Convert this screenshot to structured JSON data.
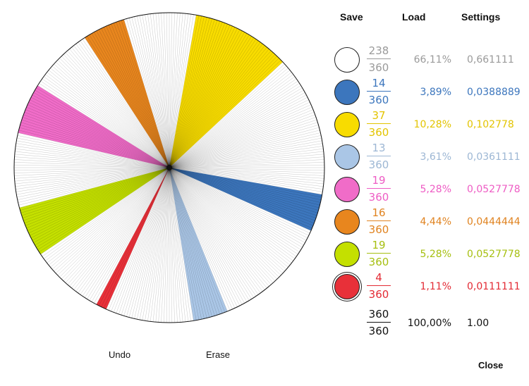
{
  "toolbar": {
    "save_label": "Save",
    "load_label": "Load",
    "settings_label": "Settings"
  },
  "rows": [
    {
      "numerator": "238",
      "denominator": "360",
      "percent": "66,11%",
      "decimal": "0,661111",
      "color": "#ffffff",
      "text_color": "#9a9a9a"
    },
    {
      "numerator": "14",
      "denominator": "360",
      "percent": "3,89%",
      "decimal": "0,0388889",
      "color": "#3c76bd",
      "text_color": "#3c76bd"
    },
    {
      "numerator": "37",
      "denominator": "360",
      "percent": "10,28%",
      "decimal": "0,102778",
      "color": "#f8dc00",
      "text_color": "#e3c400"
    },
    {
      "numerator": "13",
      "denominator": "360",
      "percent": "3,61%",
      "decimal": "0,0361111",
      "color": "#aac6e6",
      "text_color": "#9db7d4"
    },
    {
      "numerator": "19",
      "denominator": "360",
      "percent": "5,28%",
      "decimal": "0,0527778",
      "color": "#f06cc8",
      "text_color": "#ee5cc4"
    },
    {
      "numerator": "16",
      "denominator": "360",
      "percent": "4,44%",
      "decimal": "0,0444444",
      "color": "#e8861e",
      "text_color": "#e08320"
    },
    {
      "numerator": "19",
      "denominator": "360",
      "percent": "5,28%",
      "decimal": "0,0527778",
      "color": "#c4e000",
      "text_color": "#a6bf10"
    },
    {
      "numerator": "4",
      "denominator": "360",
      "percent": "1,11%",
      "decimal": "0,0111111",
      "color": "#e83039",
      "text_color": "#e32a34",
      "selected": true
    }
  ],
  "total": {
    "numerator": "360",
    "denominator": "360",
    "percent": "100,00%",
    "decimal": "1.00"
  },
  "wheel": {
    "total_parts": 360,
    "sectors": [
      {
        "start_degree": 10,
        "parts": 37,
        "color": "#f8dc00"
      },
      {
        "start_degree": 100,
        "parts": 14,
        "color": "#3c76bd"
      },
      {
        "start_degree": 158,
        "parts": 13,
        "color": "#aac6e6"
      },
      {
        "start_degree": 204,
        "parts": 4,
        "color": "#e83039"
      },
      {
        "start_degree": 236,
        "parts": 19,
        "color": "#c4e000"
      },
      {
        "start_degree": 283,
        "parts": 19,
        "color": "#f06cc8"
      },
      {
        "start_degree": 327,
        "parts": 16,
        "color": "#e8861e"
      }
    ]
  },
  "footer": {
    "undo_label": "Undo",
    "erase_label": "Erase",
    "close_label": "Close"
  }
}
